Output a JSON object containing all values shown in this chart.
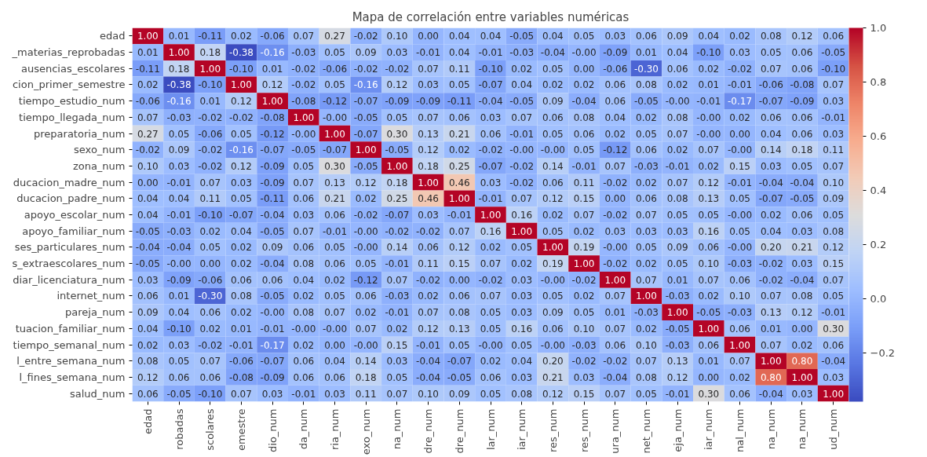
{
  "chart_data": {
    "type": "heatmap",
    "title": "Mapa de correlación entre variables numéricas",
    "categories": [
      "edad",
      "robadas",
      "scolares",
      "emestre",
      "dio_num",
      "da_num",
      "ria_num",
      "exo_num",
      "na_num",
      "dre_num",
      "dre_num",
      "lar_num",
      "iar_num",
      "res_num",
      "res_num",
      "ura_num",
      "net_num",
      "eja_num",
      "iar_num",
      "nal_num",
      "na_num",
      "na_num",
      "ud_num"
    ],
    "y_categories": [
      "edad",
      "_materias_reprobadas",
      "ausencias_escolares",
      "cion_primer_semestre",
      "tiempo_estudio_num",
      "tiempo_llegada_num",
      "preparatoria_num",
      "sexo_num",
      "zona_num",
      "ducacion_madre_num",
      "ducacion_padre_num",
      "apoyo_escolar_num",
      "apoyo_familiar_num",
      "ses_particulares_num",
      "s_extraescolares_num",
      "diar_licenciatura_num",
      "internet_num",
      "pareja_num",
      "tuacion_familiar_num",
      "tiempo_semanal_num",
      "l_entre_semana_num",
      "l_fines_semana_num",
      "salud_num"
    ],
    "cells": [
      [
        1.0,
        0.01,
        -0.11,
        0.02,
        -0.06,
        0.07,
        0.27,
        -0.02,
        0.1,
        0.0,
        0.04,
        0.04,
        -0.05,
        0.04,
        0.05,
        0.03,
        0.06,
        0.09,
        0.04,
        0.02,
        0.08,
        0.12,
        0.06
      ],
      [
        0.01,
        1.0,
        0.18,
        -0.38,
        -0.16,
        -0.03,
        0.05,
        0.09,
        0.03,
        -0.01,
        0.04,
        -0.01,
        -0.03,
        -0.04,
        -0.0,
        -0.09,
        0.01,
        0.04,
        -0.1,
        0.03,
        0.05,
        0.06,
        -0.05
      ],
      [
        -0.11,
        0.18,
        1.0,
        -0.1,
        0.01,
        -0.02,
        -0.06,
        -0.02,
        -0.02,
        0.07,
        0.11,
        -0.1,
        0.02,
        0.05,
        0.0,
        -0.06,
        -0.3,
        0.06,
        0.02,
        -0.02,
        0.07,
        0.06,
        -0.1
      ],
      [
        0.02,
        -0.38,
        -0.1,
        1.0,
        0.12,
        -0.02,
        0.05,
        -0.16,
        0.12,
        0.03,
        0.05,
        -0.07,
        0.04,
        0.02,
        0.02,
        0.06,
        0.08,
        0.02,
        0.01,
        -0.01,
        -0.06,
        -0.08,
        0.07
      ],
      [
        -0.06,
        -0.16,
        0.01,
        0.12,
        1.0,
        -0.08,
        -0.12,
        -0.07,
        -0.09,
        -0.09,
        -0.11,
        -0.04,
        -0.05,
        0.09,
        -0.04,
        0.06,
        -0.05,
        -0.0,
        -0.01,
        -0.17,
        -0.07,
        -0.09,
        0.03
      ],
      [
        0.07,
        -0.03,
        -0.02,
        -0.02,
        -0.08,
        1.0,
        -0.0,
        -0.05,
        0.05,
        0.07,
        0.06,
        0.03,
        0.07,
        0.06,
        0.08,
        0.04,
        0.02,
        0.08,
        -0.0,
        0.02,
        0.06,
        0.06,
        -0.01
      ],
      [
        0.27,
        0.05,
        -0.06,
        0.05,
        -0.12,
        -0.0,
        1.0,
        -0.07,
        0.3,
        0.13,
        0.21,
        0.06,
        -0.01,
        0.05,
        0.06,
        0.02,
        0.05,
        0.07,
        -0.0,
        0.0,
        0.04,
        0.06,
        0.03
      ],
      [
        -0.02,
        0.09,
        -0.02,
        -0.16,
        -0.07,
        -0.05,
        -0.07,
        1.0,
        -0.05,
        0.12,
        0.02,
        -0.02,
        -0.0,
        -0.0,
        0.05,
        -0.12,
        0.06,
        0.02,
        0.07,
        -0.0,
        0.14,
        0.18,
        0.11
      ],
      [
        0.1,
        0.03,
        -0.02,
        0.12,
        -0.09,
        0.05,
        0.3,
        -0.05,
        1.0,
        0.18,
        0.25,
        -0.07,
        -0.02,
        0.14,
        -0.01,
        0.07,
        -0.03,
        -0.01,
        0.02,
        0.15,
        0.03,
        0.05,
        0.07
      ],
      [
        0.0,
        -0.01,
        0.07,
        0.03,
        -0.09,
        0.07,
        0.13,
        0.12,
        0.18,
        1.0,
        0.46,
        0.03,
        -0.02,
        0.06,
        0.11,
        -0.02,
        0.02,
        0.07,
        0.12,
        -0.01,
        -0.04,
        -0.04,
        0.1
      ],
      [
        0.04,
        0.04,
        0.11,
        0.05,
        -0.11,
        0.06,
        0.21,
        0.02,
        0.25,
        0.46,
        1.0,
        -0.01,
        0.07,
        0.12,
        0.15,
        0.0,
        0.06,
        0.08,
        0.13,
        0.05,
        -0.07,
        -0.05,
        0.09
      ],
      [
        0.04,
        -0.01,
        -0.1,
        -0.07,
        -0.04,
        0.03,
        0.06,
        -0.02,
        -0.07,
        0.03,
        -0.01,
        1.0,
        0.16,
        0.02,
        0.07,
        -0.02,
        0.07,
        0.05,
        0.05,
        -0.0,
        0.02,
        0.06,
        0.05
      ],
      [
        -0.05,
        -0.03,
        0.02,
        0.04,
        -0.05,
        0.07,
        -0.01,
        -0.0,
        -0.02,
        -0.02,
        0.07,
        0.16,
        1.0,
        0.05,
        0.02,
        0.03,
        0.03,
        0.03,
        0.16,
        0.05,
        0.04,
        0.03,
        0.08
      ],
      [
        -0.04,
        -0.04,
        0.05,
        0.02,
        0.09,
        0.06,
        0.05,
        -0.0,
        0.14,
        0.06,
        0.12,
        0.02,
        0.05,
        1.0,
        0.19,
        -0.0,
        0.05,
        0.09,
        0.06,
        -0.0,
        0.2,
        0.21,
        0.12
      ],
      [
        -0.05,
        -0.0,
        0.0,
        0.02,
        -0.04,
        0.08,
        0.06,
        0.05,
        -0.01,
        0.11,
        0.15,
        0.07,
        0.02,
        0.19,
        1.0,
        -0.02,
        0.02,
        0.05,
        0.1,
        -0.03,
        -0.02,
        0.03,
        0.15
      ],
      [
        0.03,
        -0.09,
        -0.06,
        0.06,
        0.06,
        0.04,
        0.02,
        -0.12,
        0.07,
        -0.02,
        0.0,
        -0.02,
        0.03,
        -0.0,
        -0.02,
        1.0,
        0.07,
        0.01,
        0.07,
        0.06,
        -0.02,
        -0.04,
        0.07
      ],
      [
        0.06,
        0.01,
        -0.3,
        0.08,
        -0.05,
        0.02,
        0.05,
        0.06,
        -0.03,
        0.02,
        0.06,
        0.07,
        0.03,
        0.05,
        0.02,
        0.07,
        1.0,
        -0.03,
        0.02,
        0.1,
        0.07,
        0.08,
        0.05
      ],
      [
        0.09,
        0.04,
        0.06,
        0.02,
        -0.0,
        0.08,
        0.07,
        0.02,
        -0.01,
        0.07,
        0.08,
        0.05,
        0.03,
        0.09,
        0.05,
        0.01,
        -0.03,
        1.0,
        -0.05,
        -0.03,
        0.13,
        0.12,
        -0.01
      ],
      [
        0.04,
        -0.1,
        0.02,
        0.01,
        -0.01,
        -0.0,
        -0.0,
        0.07,
        0.02,
        0.12,
        0.13,
        0.05,
        0.16,
        0.06,
        0.1,
        0.07,
        0.02,
        -0.05,
        1.0,
        0.06,
        0.01,
        0.0,
        0.3
      ],
      [
        0.02,
        0.03,
        -0.02,
        -0.01,
        -0.17,
        0.02,
        0.0,
        -0.0,
        0.15,
        -0.01,
        0.05,
        -0.0,
        0.05,
        -0.0,
        -0.03,
        0.06,
        0.1,
        -0.03,
        0.06,
        1.0,
        0.07,
        0.02,
        0.06
      ],
      [
        0.08,
        0.05,
        0.07,
        -0.06,
        -0.07,
        0.06,
        0.04,
        0.14,
        0.03,
        -0.04,
        -0.07,
        0.02,
        0.04,
        0.2,
        -0.02,
        -0.02,
        0.07,
        0.13,
        0.01,
        0.07,
        1.0,
        0.8,
        -0.04
      ],
      [
        0.12,
        0.06,
        0.06,
        -0.08,
        -0.09,
        0.06,
        0.06,
        0.18,
        0.05,
        -0.04,
        -0.05,
        0.06,
        0.03,
        0.21,
        0.03,
        -0.04,
        0.08,
        0.12,
        0.0,
        0.02,
        0.8,
        1.0,
        0.03
      ],
      [
        0.06,
        -0.05,
        -0.1,
        0.07,
        0.03,
        -0.01,
        0.03,
        0.11,
        0.07,
        0.1,
        0.09,
        0.05,
        0.08,
        0.12,
        0.15,
        0.07,
        0.05,
        -0.01,
        0.3,
        0.06,
        -0.04,
        0.03,
        1.0
      ]
    ],
    "cell_labels": [
      [
        "1.00",
        "0.01",
        "-0.11",
        "0.02",
        "-0.06",
        "0.07",
        "0.27",
        "-0.02",
        "0.10",
        "0.00",
        "0.04",
        "0.04",
        "-0.05",
        "0.04",
        "0.05",
        "0.03",
        "0.06",
        "0.09",
        "0.04",
        "0.02",
        "0.08",
        "0.12",
        "0.06"
      ],
      [
        "0.01",
        "1.00",
        "0.18",
        "-0.38",
        "-0.16",
        "-0.03",
        "0.05",
        "0.09",
        "0.03",
        "-0.01",
        "0.04",
        "-0.01",
        "-0.03",
        "-0.04",
        "-0.00",
        "-0.09",
        "0.01",
        "0.04",
        "-0.10",
        "0.03",
        "0.05",
        "0.06",
        "-0.05"
      ],
      [
        "-0.11",
        "0.18",
        "1.00",
        "-0.10",
        "0.01",
        "-0.02",
        "-0.06",
        "-0.02",
        "-0.02",
        "0.07",
        "0.11",
        "-0.10",
        "0.02",
        "0.05",
        "0.00",
        "-0.06",
        "-0.30",
        "0.06",
        "0.02",
        "-0.02",
        "0.07",
        "0.06",
        "-0.10"
      ],
      [
        "0.02",
        "-0.38",
        "-0.10",
        "1.00",
        "0.12",
        "-0.02",
        "0.05",
        "-0.16",
        "0.12",
        "0.03",
        "0.05",
        "-0.07",
        "0.04",
        "0.02",
        "0.02",
        "0.06",
        "0.08",
        "0.02",
        "0.01",
        "-0.01",
        "-0.06",
        "-0.08",
        "0.07"
      ],
      [
        "-0.06",
        "-0.16",
        "0.01",
        "0.12",
        "1.00",
        "-0.08",
        "-0.12",
        "-0.07",
        "-0.09",
        "-0.09",
        "-0.11",
        "-0.04",
        "-0.05",
        "0.09",
        "-0.04",
        "0.06",
        "-0.05",
        "-0.00",
        "-0.01",
        "-0.17",
        "-0.07",
        "-0.09",
        "0.03"
      ],
      [
        "0.07",
        "-0.03",
        "-0.02",
        "-0.02",
        "-0.08",
        "1.00",
        "-0.00",
        "-0.05",
        "0.05",
        "0.07",
        "0.06",
        "0.03",
        "0.07",
        "0.06",
        "0.08",
        "0.04",
        "0.02",
        "0.08",
        "-0.00",
        "0.02",
        "0.06",
        "0.06",
        "-0.01"
      ],
      [
        "0.27",
        "0.05",
        "-0.06",
        "0.05",
        "-0.12",
        "-0.00",
        "1.00",
        "-0.07",
        "0.30",
        "0.13",
        "0.21",
        "0.06",
        "-0.01",
        "0.05",
        "0.06",
        "0.02",
        "0.05",
        "0.07",
        "-0.00",
        "0.00",
        "0.04",
        "0.06",
        "0.03"
      ],
      [
        "-0.02",
        "0.09",
        "-0.02",
        "-0.16",
        "-0.07",
        "-0.05",
        "-0.07",
        "1.00",
        "-0.05",
        "0.12",
        "0.02",
        "-0.02",
        "-0.00",
        "-0.00",
        "0.05",
        "-0.12",
        "0.06",
        "0.02",
        "0.07",
        "-0.00",
        "0.14",
        "0.18",
        "0.11"
      ],
      [
        "0.10",
        "0.03",
        "-0.02",
        "0.12",
        "-0.09",
        "0.05",
        "0.30",
        "-0.05",
        "1.00",
        "0.18",
        "0.25",
        "-0.07",
        "-0.02",
        "0.14",
        "-0.01",
        "0.07",
        "-0.03",
        "-0.01",
        "0.02",
        "0.15",
        "0.03",
        "0.05",
        "0.07"
      ],
      [
        "0.00",
        "-0.01",
        "0.07",
        "0.03",
        "-0.09",
        "0.07",
        "0.13",
        "0.12",
        "0.18",
        "1.00",
        "0.46",
        "0.03",
        "-0.02",
        "0.06",
        "0.11",
        "-0.02",
        "0.02",
        "0.07",
        "0.12",
        "-0.01",
        "-0.04",
        "-0.04",
        "0.10"
      ],
      [
        "0.04",
        "0.04",
        "0.11",
        "0.05",
        "-0.11",
        "0.06",
        "0.21",
        "0.02",
        "0.25",
        "0.46",
        "1.00",
        "-0.01",
        "0.07",
        "0.12",
        "0.15",
        "0.00",
        "0.06",
        "0.08",
        "0.13",
        "0.05",
        "-0.07",
        "-0.05",
        "0.09"
      ],
      [
        "0.04",
        "-0.01",
        "-0.10",
        "-0.07",
        "-0.04",
        "0.03",
        "0.06",
        "-0.02",
        "-0.07",
        "0.03",
        "-0.01",
        "1.00",
        "0.16",
        "0.02",
        "0.07",
        "-0.02",
        "0.07",
        "0.05",
        "0.05",
        "-0.00",
        "0.02",
        "0.06",
        "0.05"
      ],
      [
        "-0.05",
        "-0.03",
        "0.02",
        "0.04",
        "-0.05",
        "0.07",
        "-0.01",
        "-0.00",
        "-0.02",
        "-0.02",
        "0.07",
        "0.16",
        "1.00",
        "0.05",
        "0.02",
        "0.03",
        "0.03",
        "0.03",
        "0.16",
        "0.05",
        "0.04",
        "0.03",
        "0.08"
      ],
      [
        "-0.04",
        "-0.04",
        "0.05",
        "0.02",
        "0.09",
        "0.06",
        "0.05",
        "-0.00",
        "0.14",
        "0.06",
        "0.12",
        "0.02",
        "0.05",
        "1.00",
        "0.19",
        "-0.00",
        "0.05",
        "0.09",
        "0.06",
        "-0.00",
        "0.20",
        "0.21",
        "0.12"
      ],
      [
        "-0.05",
        "-0.00",
        "0.00",
        "0.02",
        "-0.04",
        "0.08",
        "0.06",
        "0.05",
        "-0.01",
        "0.11",
        "0.15",
        "0.07",
        "0.02",
        "0.19",
        "1.00",
        "-0.02",
        "0.02",
        "0.05",
        "0.10",
        "-0.03",
        "-0.02",
        "0.03",
        "0.15"
      ],
      [
        "0.03",
        "-0.09",
        "-0.06",
        "0.06",
        "0.06",
        "0.04",
        "0.02",
        "-0.12",
        "0.07",
        "-0.02",
        "0.00",
        "-0.02",
        "0.03",
        "-0.00",
        "-0.02",
        "1.00",
        "0.07",
        "0.01",
        "0.07",
        "0.06",
        "-0.02",
        "-0.04",
        "0.07"
      ],
      [
        "0.06",
        "0.01",
        "-0.30",
        "0.08",
        "-0.05",
        "0.02",
        "0.05",
        "0.06",
        "-0.03",
        "0.02",
        "0.06",
        "0.07",
        "0.03",
        "0.05",
        "0.02",
        "0.07",
        "1.00",
        "-0.03",
        "0.02",
        "0.10",
        "0.07",
        "0.08",
        "0.05"
      ],
      [
        "0.09",
        "0.04",
        "0.06",
        "0.02",
        "-0.00",
        "0.08",
        "0.07",
        "0.02",
        "-0.01",
        "0.07",
        "0.08",
        "0.05",
        "0.03",
        "0.09",
        "0.05",
        "0.01",
        "-0.03",
        "1.00",
        "-0.05",
        "-0.03",
        "0.13",
        "0.12",
        "-0.01"
      ],
      [
        "0.04",
        "-0.10",
        "0.02",
        "0.01",
        "-0.01",
        "-0.00",
        "-0.00",
        "0.07",
        "0.02",
        "0.12",
        "0.13",
        "0.05",
        "0.16",
        "0.06",
        "0.10",
        "0.07",
        "0.02",
        "-0.05",
        "1.00",
        "0.06",
        "0.01",
        "0.00",
        "0.30"
      ],
      [
        "0.02",
        "0.03",
        "-0.02",
        "-0.01",
        "-0.17",
        "0.02",
        "0.00",
        "-0.00",
        "0.15",
        "-0.01",
        "0.05",
        "-0.00",
        "0.05",
        "-0.00",
        "-0.03",
        "0.06",
        "0.10",
        "-0.03",
        "0.06",
        "1.00",
        "0.07",
        "0.02",
        "0.06"
      ],
      [
        "0.08",
        "0.05",
        "0.07",
        "-0.06",
        "-0.07",
        "0.06",
        "0.04",
        "0.14",
        "0.03",
        "-0.04",
        "-0.07",
        "0.02",
        "0.04",
        "0.20",
        "-0.02",
        "-0.02",
        "0.07",
        "0.13",
        "0.01",
        "0.07",
        "1.00",
        "0.80",
        "-0.04"
      ],
      [
        "0.12",
        "0.06",
        "0.06",
        "-0.08",
        "-0.09",
        "0.06",
        "0.06",
        "0.18",
        "0.05",
        "-0.04",
        "-0.05",
        "0.06",
        "0.03",
        "0.21",
        "0.03",
        "-0.04",
        "0.08",
        "0.12",
        "0.00",
        "0.02",
        "0.80",
        "1.00",
        "0.03"
      ],
      [
        "0.06",
        "-0.05",
        "-0.10",
        "0.07",
        "0.03",
        "-0.01",
        "0.03",
        "0.11",
        "0.07",
        "0.10",
        "0.09",
        "0.05",
        "0.08",
        "0.12",
        "0.15",
        "0.07",
        "0.05",
        "-0.01",
        "0.30",
        "0.06",
        "-0.04",
        "0.03",
        "1.00"
      ]
    ],
    "clim": [
      -0.38,
      1.0
    ],
    "cticks": [
      {
        "value": -0.2,
        "label": "−0.2"
      },
      {
        "value": 0,
        "label": "0.0"
      },
      {
        "value": 0.2,
        "label": "0.2"
      },
      {
        "value": 0.4,
        "label": "0.4"
      },
      {
        "value": 0.6,
        "label": "0.6"
      },
      {
        "value": 0.8,
        "label": "0.8"
      },
      {
        "value": 1.0,
        "label": "1.0"
      }
    ]
  }
}
